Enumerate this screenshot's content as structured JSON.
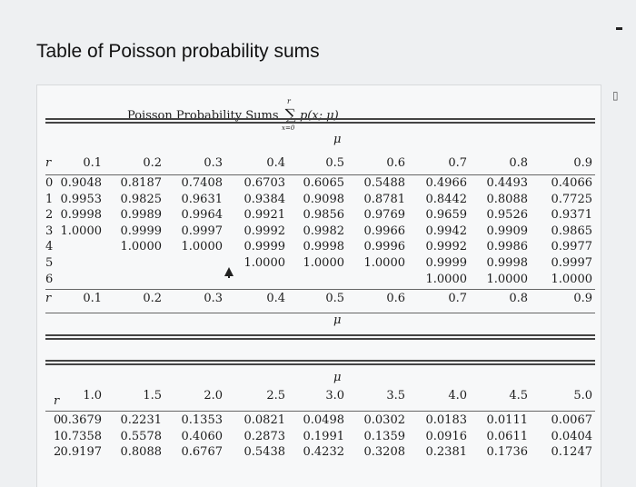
{
  "title": "Table of Poisson probability sums",
  "table_caption": {
    "text": "Poisson Probability Sums",
    "sum_symbol": "∑",
    "expression": "p(x; μ)",
    "upper_limit": "r",
    "lower_limit": "x=0"
  },
  "table1": {
    "mu_label": "μ",
    "r_label": "r",
    "headers": [
      "0.1",
      "0.2",
      "0.3",
      "0.4",
      "0.5",
      "0.6",
      "0.7",
      "0.8",
      "0.9"
    ],
    "rows": [
      {
        "r": "0",
        "values": [
          "0.9048",
          "0.8187",
          "0.7408",
          "0.6703",
          "0.6065",
          "0.5488",
          "0.4966",
          "0.4493",
          "0.4066"
        ]
      },
      {
        "r": "1",
        "values": [
          "0.9953",
          "0.9825",
          "0.9631",
          "0.9384",
          "0.9098",
          "0.8781",
          "0.8442",
          "0.8088",
          "0.7725"
        ]
      },
      {
        "r": "2",
        "values": [
          "0.9998",
          "0.9989",
          "0.9964",
          "0.9921",
          "0.9856",
          "0.9769",
          "0.9659",
          "0.9526",
          "0.9371"
        ]
      },
      {
        "r": "3",
        "values": [
          "1.0000",
          "0.9999",
          "0.9997",
          "0.9992",
          "0.9982",
          "0.9966",
          "0.9942",
          "0.9909",
          "0.9865"
        ]
      },
      {
        "r": "4",
        "values": [
          "",
          "1.0000",
          "1.0000",
          "0.9999",
          "0.9998",
          "0.9996",
          "0.9992",
          "0.9986",
          "0.9977"
        ]
      },
      {
        "r": "5",
        "values": [
          "",
          "",
          "",
          "1.0000",
          "1.0000",
          "1.0000",
          "0.9999",
          "0.9998",
          "0.9997"
        ]
      },
      {
        "r": "6",
        "values": [
          "",
          "",
          "",
          "",
          "",
          "",
          "1.0000",
          "1.0000",
          "1.0000"
        ]
      }
    ],
    "footer_headers": [
      "0.1",
      "0.2",
      "0.3",
      "0.4",
      "0.5",
      "0.6",
      "0.7",
      "0.8",
      "0.9"
    ]
  },
  "table2": {
    "mu_label": "μ",
    "r_label": "r",
    "headers": [
      "1.0",
      "1.5",
      "2.0",
      "2.5",
      "3.0",
      "3.5",
      "4.0",
      "4.5",
      "5.0"
    ],
    "rows": [
      {
        "r": "0",
        "values": [
          "0.3679",
          "0.2231",
          "0.1353",
          "0.0821",
          "0.0498",
          "0.0302",
          "0.0183",
          "0.0111",
          "0.0067"
        ]
      },
      {
        "r": "1",
        "values": [
          "0.7358",
          "0.5578",
          "0.4060",
          "0.2873",
          "0.1991",
          "0.1359",
          "0.0916",
          "0.0611",
          "0.0404"
        ]
      },
      {
        "r": "2",
        "values": [
          "0.9197",
          "0.8088",
          "0.6767",
          "0.5438",
          "0.4232",
          "0.3208",
          "0.2381",
          "0.1736",
          "0.1247"
        ]
      }
    ]
  },
  "icons": {
    "corner": "document-icon",
    "cursor": "mouse-cursor-icon"
  }
}
